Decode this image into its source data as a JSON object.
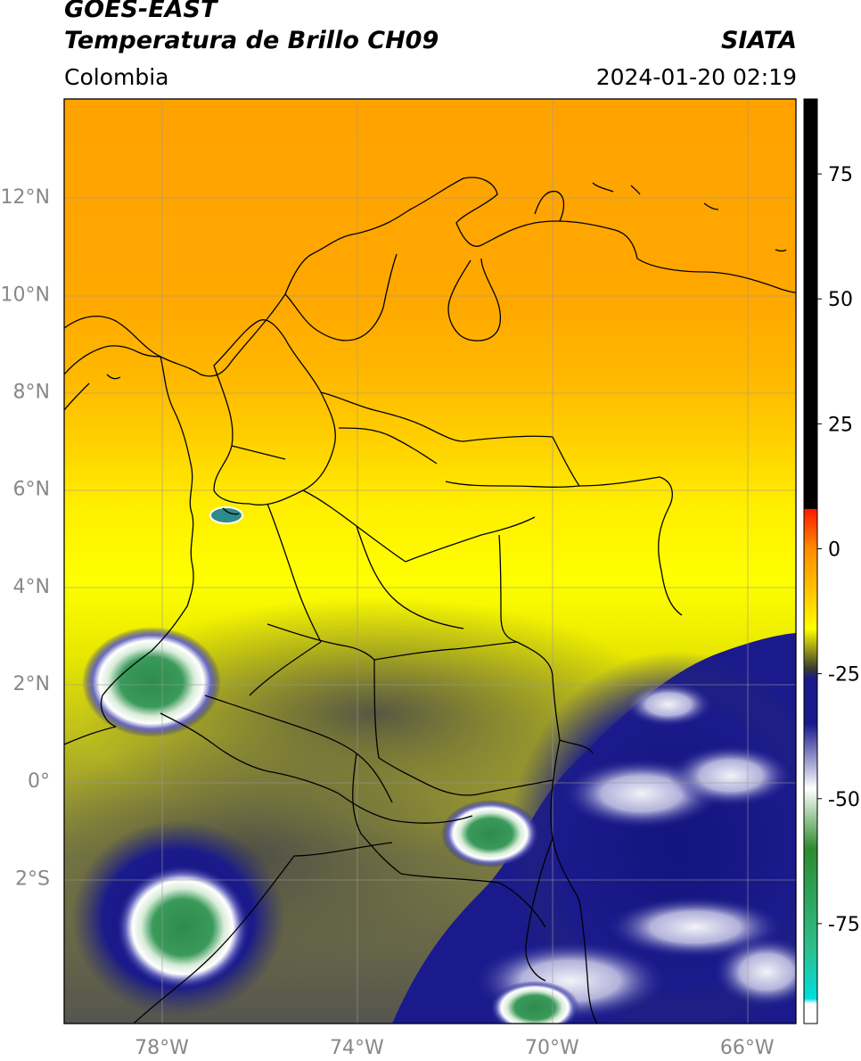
{
  "header": {
    "satellite": "GOES-EAST",
    "product": "Temperatura de Brillo CH09",
    "organization": "SIATA",
    "region": "Colombia",
    "datetime": "2024-01-20 02:19"
  },
  "axes": {
    "lat_ticks": [
      {
        "value": 12,
        "label": "12°N"
      },
      {
        "value": 10,
        "label": "10°N"
      },
      {
        "value": 8,
        "label": "8°N"
      },
      {
        "value": 6,
        "label": "6°N"
      },
      {
        "value": 4,
        "label": "4°N"
      },
      {
        "value": 2,
        "label": "2°N"
      },
      {
        "value": 0,
        "label": "0°"
      },
      {
        "value": -2,
        "label": "2°S"
      }
    ],
    "lon_ticks": [
      {
        "value": -78,
        "label": "78°W"
      },
      {
        "value": -74,
        "label": "74°W"
      },
      {
        "value": -70,
        "label": "70°W"
      },
      {
        "value": -66,
        "label": "66°W"
      }
    ],
    "lon_range": [
      -80,
      -65
    ],
    "lat_range": [
      -5,
      14
    ],
    "grid": true
  },
  "colorbar": {
    "ticks": [
      75,
      50,
      25,
      0,
      -25,
      -50,
      -75
    ],
    "range": [
      -95,
      90
    ],
    "stops": [
      {
        "value": 90,
        "color": "#000000"
      },
      {
        "value": 8,
        "color": "#000000"
      },
      {
        "value": 7.9,
        "color": "#ff1a00"
      },
      {
        "value": 0,
        "color": "#ff8c00"
      },
      {
        "value": -10,
        "color": "#ffd000"
      },
      {
        "value": -16,
        "color": "#ffff00"
      },
      {
        "value": -24,
        "color": "#3a3a30"
      },
      {
        "value": -26,
        "color": "#1a1a8c"
      },
      {
        "value": -35,
        "color": "#1a1a8c"
      },
      {
        "value": -48,
        "color": "#ffffff"
      },
      {
        "value": -60,
        "color": "#2e8b2e"
      },
      {
        "value": -80,
        "color": "#2ebf8c"
      },
      {
        "value": -90,
        "color": "#00dede"
      },
      {
        "value": -91,
        "color": "#ffffff"
      },
      {
        "value": -95,
        "color": "#ffffff"
      }
    ]
  }
}
